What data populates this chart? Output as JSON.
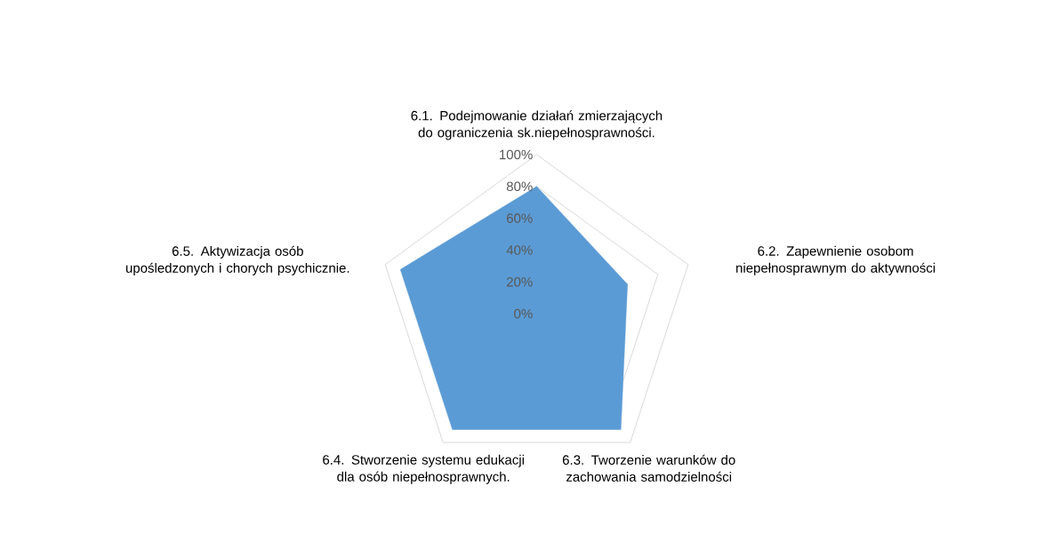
{
  "chart_data": {
    "type": "radar",
    "categories": [
      "6.1. Podejmowanie działań zmierzających do ograniczenia sk.niepełnosprawności.",
      "6.2. Zapewnienie osobom niepełnosprawnym do aktywności",
      "6.3. Tworzenie warunków do zachowania samodzielności",
      "6.4. Stworzenie systemu edukacji dla osób niepełnosprawnych.",
      "6.5. Aktywizacja osób upośledzonych i chorych psychicznie."
    ],
    "series": [
      {
        "color": "#5b9bd5",
        "values": [
          80,
          60,
          90,
          90,
          90
        ]
      }
    ],
    "ylim": [
      0,
      100
    ],
    "yticks": [
      {
        "value": 0,
        "label": "0%"
      },
      {
        "value": 20,
        "label": "20%"
      },
      {
        "value": 40,
        "label": "40%"
      },
      {
        "value": 60,
        "label": "60%"
      },
      {
        "value": 80,
        "label": "80%"
      },
      {
        "value": 100,
        "label": "100%"
      }
    ],
    "grid": true
  }
}
